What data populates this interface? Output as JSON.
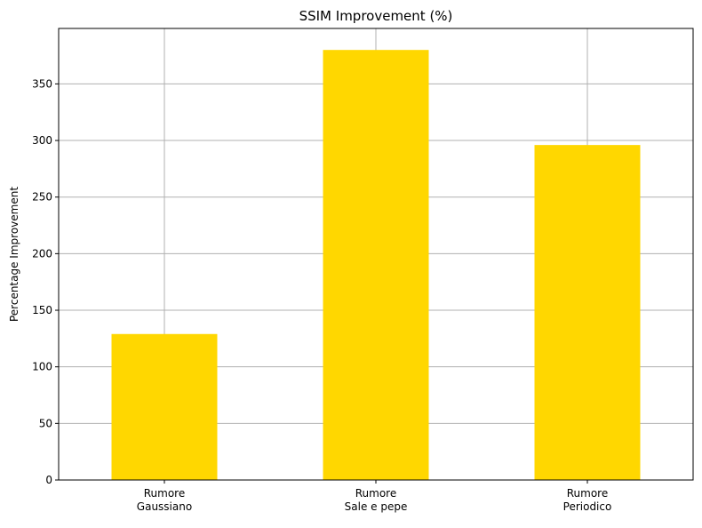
{
  "chart_data": {
    "type": "bar",
    "title": "SSIM Improvement (%)",
    "xlabel": "",
    "ylabel": "Percentage Improvement",
    "categories": [
      [
        "Rumore",
        "Gaussiano"
      ],
      [
        "Rumore",
        "Sale e pepe"
      ],
      [
        "Rumore",
        "Periodico"
      ]
    ],
    "values": [
      129,
      380,
      296
    ],
    "ylim": [
      0,
      399
    ],
    "yticks": [
      0,
      50,
      100,
      150,
      200,
      250,
      300,
      350
    ],
    "bar_color": "#FFD700",
    "grid": true,
    "legend": null
  }
}
